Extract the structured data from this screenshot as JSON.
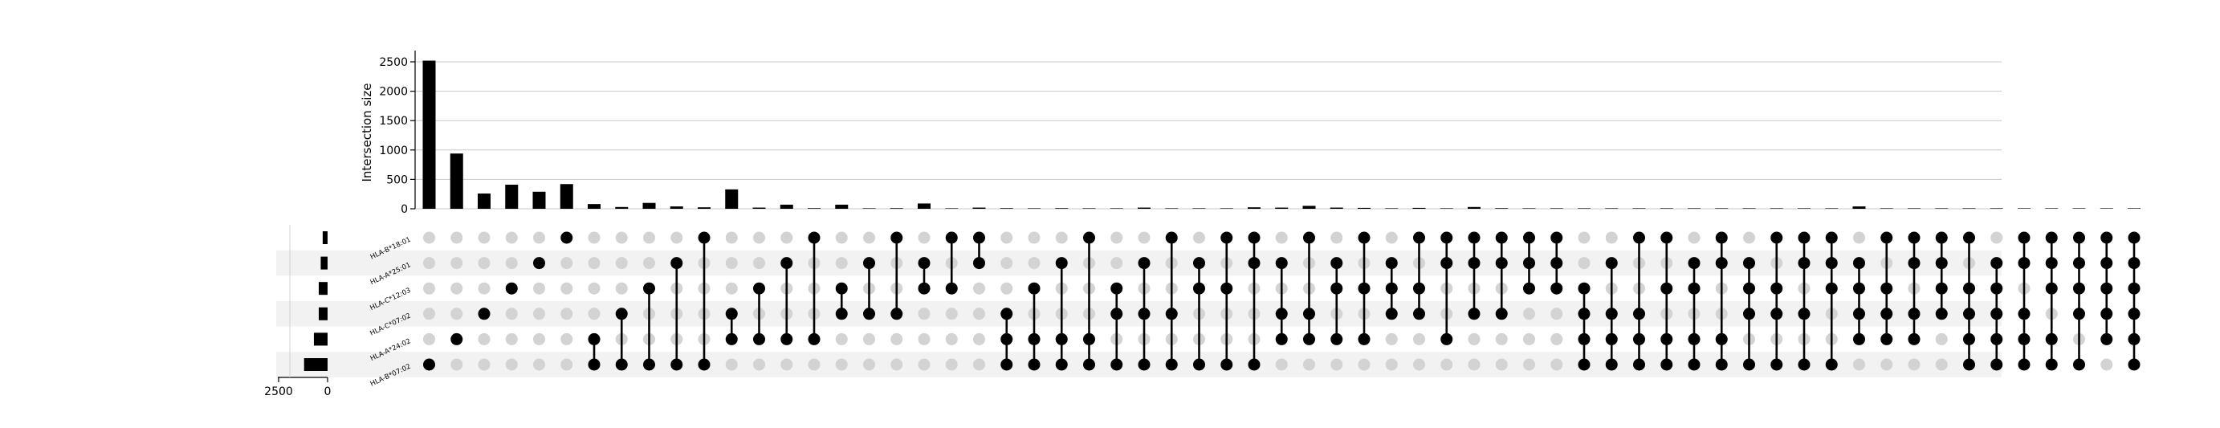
{
  "chart_data": {
    "type": "upset",
    "y_label": "Intersection size",
    "y_ticks": [
      0,
      500,
      1000,
      1500,
      2000,
      2500
    ],
    "ylim": [
      0,
      2600
    ],
    "set_size_ticks": [
      "2500",
      "0"
    ],
    "set_size_xlim": [
      0,
      3000
    ],
    "grid": true,
    "sets": [
      {
        "name": "HLA-B*18:01",
        "size": 250
      },
      {
        "name": "HLA-A*25:01",
        "size": 350
      },
      {
        "name": "HLA-C*12:03",
        "size": 450
      },
      {
        "name": "HLA-C*07:02",
        "size": 450
      },
      {
        "name": "HLA-A*24:02",
        "size": 700
      },
      {
        "name": "HLA-B*07:02",
        "size": 1200
      }
    ],
    "intersections": [
      {
        "members": [
          5
        ],
        "size": 2520
      },
      {
        "members": [
          4
        ],
        "size": 940
      },
      {
        "members": [
          3
        ],
        "size": 260
      },
      {
        "members": [
          2
        ],
        "size": 410
      },
      {
        "members": [
          1
        ],
        "size": 290
      },
      {
        "members": [
          0
        ],
        "size": 420
      },
      {
        "members": [
          4,
          5
        ],
        "size": 80
      },
      {
        "members": [
          3,
          5
        ],
        "size": 30
      },
      {
        "members": [
          2,
          5
        ],
        "size": 100
      },
      {
        "members": [
          1,
          5
        ],
        "size": 40
      },
      {
        "members": [
          0,
          5
        ],
        "size": 25
      },
      {
        "members": [
          3,
          4
        ],
        "size": 330
      },
      {
        "members": [
          2,
          4
        ],
        "size": 20
      },
      {
        "members": [
          1,
          4
        ],
        "size": 70
      },
      {
        "members": [
          0,
          4
        ],
        "size": 10
      },
      {
        "members": [
          2,
          3
        ],
        "size": 70
      },
      {
        "members": [
          1,
          3
        ],
        "size": 5
      },
      {
        "members": [
          0,
          3
        ],
        "size": 10
      },
      {
        "members": [
          1,
          2
        ],
        "size": 90
      },
      {
        "members": [
          0,
          2
        ],
        "size": 5
      },
      {
        "members": [
          0,
          1
        ],
        "size": 20
      },
      {
        "members": [
          3,
          4,
          5
        ],
        "size": 10
      },
      {
        "members": [
          2,
          4,
          5
        ],
        "size": 5
      },
      {
        "members": [
          1,
          4,
          5
        ],
        "size": 10
      },
      {
        "members": [
          0,
          4,
          5
        ],
        "size": 5
      },
      {
        "members": [
          2,
          3,
          5
        ],
        "size": 5
      },
      {
        "members": [
          1,
          3,
          5
        ],
        "size": 20
      },
      {
        "members": [
          0,
          3,
          5
        ],
        "size": 5
      },
      {
        "members": [
          1,
          2,
          5
        ],
        "size": 5
      },
      {
        "members": [
          0,
          2,
          5
        ],
        "size": 5
      },
      {
        "members": [
          0,
          1,
          5
        ],
        "size": 25
      },
      {
        "members": [
          1,
          3,
          4
        ],
        "size": 20
      },
      {
        "members": [
          0,
          3,
          4
        ],
        "size": 50
      },
      {
        "members": [
          1,
          2,
          4
        ],
        "size": 20
      },
      {
        "members": [
          0,
          2,
          4
        ],
        "size": 15
      },
      {
        "members": [
          1,
          2,
          3
        ],
        "size": 5
      },
      {
        "members": [
          0,
          2,
          3
        ],
        "size": 15
      },
      {
        "members": [
          0,
          1,
          4
        ],
        "size": 5
      },
      {
        "members": [
          0,
          1,
          3
        ],
        "size": 30
      },
      {
        "members": [
          0,
          1,
          3
        ],
        "size": 10
      },
      {
        "members": [
          0,
          1,
          2
        ],
        "size": 5
      },
      {
        "members": [
          0,
          1,
          2
        ],
        "size": 5
      },
      {
        "members": [
          2,
          3,
          4,
          5
        ],
        "size": 5
      },
      {
        "members": [
          1,
          3,
          4,
          5
        ],
        "size": 5
      },
      {
        "members": [
          0,
          3,
          4,
          5
        ],
        "size": 5
      },
      {
        "members": [
          0,
          2,
          4,
          5
        ],
        "size": 5
      },
      {
        "members": [
          1,
          2,
          4,
          5
        ],
        "size": 5
      },
      {
        "members": [
          0,
          1,
          4,
          5
        ],
        "size": 5
      },
      {
        "members": [
          1,
          2,
          3,
          5
        ],
        "size": 5
      },
      {
        "members": [
          0,
          2,
          3,
          5
        ],
        "size": 5
      },
      {
        "members": [
          0,
          1,
          3,
          5
        ],
        "size": 5
      },
      {
        "members": [
          0,
          1,
          2,
          5
        ],
        "size": 5
      },
      {
        "members": [
          1,
          2,
          3,
          4
        ],
        "size": 40
      },
      {
        "members": [
          0,
          2,
          3,
          4
        ],
        "size": 5
      },
      {
        "members": [
          0,
          1,
          3,
          4
        ],
        "size": 5
      },
      {
        "members": [
          0,
          1,
          2,
          3
        ],
        "size": 5
      },
      {
        "members": [
          0,
          2,
          3,
          4,
          5
        ],
        "size": 5
      },
      {
        "members": [
          1,
          2,
          3,
          4,
          5
        ],
        "size": 5
      },
      {
        "members": [
          0,
          1,
          3,
          4,
          5
        ],
        "size": 5
      },
      {
        "members": [
          0,
          1,
          2,
          4,
          5
        ],
        "size": 5
      },
      {
        "members": [
          0,
          1,
          2,
          3,
          5
        ],
        "size": 5
      },
      {
        "members": [
          0,
          1,
          2,
          3,
          4
        ],
        "size": 5
      },
      {
        "members": [
          0,
          1,
          2,
          3,
          4,
          5
        ],
        "size": 5
      }
    ]
  }
}
